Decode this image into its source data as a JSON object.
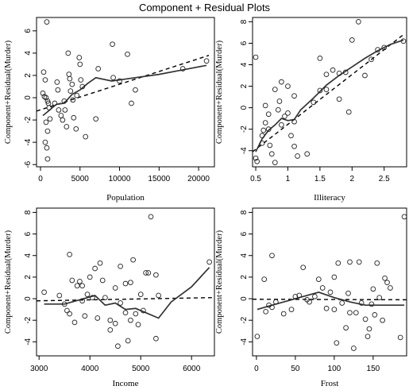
{
  "chart_data": [
    {
      "type": "scatter",
      "title": "Component + Residual Plots",
      "xlabel": "Population",
      "ylabel": "Component+Residual(Murder)",
      "xlim": [
        -500,
        22000
      ],
      "ylim": [
        -6.2,
        7.2
      ],
      "xticks": [
        0,
        5000,
        10000,
        15000,
        20000
      ],
      "yticks": [
        -6,
        -4,
        -2,
        0,
        2,
        4,
        6
      ],
      "points": [
        [
          800,
          6.8
        ],
        [
          400,
          2.3
        ],
        [
          600,
          1.6
        ],
        [
          300,
          0.4
        ],
        [
          500,
          0.1
        ],
        [
          700,
          0.0
        ],
        [
          900,
          -0.3
        ],
        [
          1100,
          -0.9
        ],
        [
          1200,
          -1.9
        ],
        [
          700,
          -2.2
        ],
        [
          900,
          -3.0
        ],
        [
          600,
          -4.0
        ],
        [
          800,
          -4.5
        ],
        [
          900,
          -5.5
        ],
        [
          1000,
          -0.5
        ],
        [
          1800,
          -0.5
        ],
        [
          2100,
          1.4
        ],
        [
          2200,
          0.7
        ],
        [
          2300,
          -1.1
        ],
        [
          2600,
          -1.6
        ],
        [
          2800,
          -2.0
        ],
        [
          3000,
          -0.3
        ],
        [
          3100,
          -1.1
        ],
        [
          3300,
          -2.6
        ],
        [
          3500,
          4.0
        ],
        [
          3600,
          2.1
        ],
        [
          3700,
          1.7
        ],
        [
          3800,
          0.6
        ],
        [
          4000,
          1.2
        ],
        [
          4100,
          -0.2
        ],
        [
          4200,
          -1.8
        ],
        [
          4500,
          -2.8
        ],
        [
          4600,
          0.2
        ],
        [
          4900,
          3.6
        ],
        [
          5000,
          3.0
        ],
        [
          5100,
          1.6
        ],
        [
          5300,
          1.0
        ],
        [
          5700,
          -3.5
        ],
        [
          7000,
          -1.9
        ],
        [
          7300,
          2.6
        ],
        [
          9100,
          4.8
        ],
        [
          9200,
          1.8
        ],
        [
          10000,
          1.5
        ],
        [
          11000,
          3.9
        ],
        [
          11500,
          -0.5
        ],
        [
          12000,
          0.7
        ],
        [
          18000,
          2.6
        ],
        [
          21000,
          3.3
        ]
      ],
      "fit_line": [
        [
          -500,
          -1.2
        ],
        [
          21300,
          3.8
        ]
      ],
      "smooth": [
        [
          300,
          -1.6
        ],
        [
          1000,
          -1.2
        ],
        [
          2000,
          -0.6
        ],
        [
          3000,
          -0.5
        ],
        [
          4000,
          0.3
        ],
        [
          5000,
          0.7
        ],
        [
          6000,
          1.3
        ],
        [
          7000,
          1.8
        ],
        [
          9000,
          1.5
        ],
        [
          11000,
          1.7
        ],
        [
          15000,
          2.1
        ],
        [
          18000,
          2.5
        ],
        [
          21000,
          2.9
        ]
      ]
    },
    {
      "type": "scatter",
      "xlabel": "Illiteracy",
      "ylabel": "Component+Residual(Murder)",
      "xlim": [
        0.45,
        2.85
      ],
      "ylim": [
        -5.5,
        8.4
      ],
      "xticks": [
        0.5,
        1.0,
        1.5,
        2.0,
        2.5
      ],
      "yticks": [
        -4,
        -2,
        0,
        2,
        4,
        6,
        8
      ],
      "points": [
        [
          0.5,
          4.7
        ],
        [
          0.5,
          -4.7
        ],
        [
          0.52,
          -5.0
        ],
        [
          0.6,
          -2.6
        ],
        [
          0.6,
          -3.3
        ],
        [
          0.62,
          -2.1
        ],
        [
          0.65,
          -1.4
        ],
        [
          0.65,
          0.2
        ],
        [
          0.7,
          -0.6
        ],
        [
          0.7,
          -2.0
        ],
        [
          0.72,
          -3.5
        ],
        [
          0.75,
          -4.3
        ],
        [
          0.8,
          -5.1
        ],
        [
          0.8,
          1.7
        ],
        [
          0.85,
          -0.2
        ],
        [
          0.87,
          0.6
        ],
        [
          0.9,
          2.4
        ],
        [
          0.9,
          -1.6
        ],
        [
          0.95,
          -0.8
        ],
        [
          1.0,
          -0.5
        ],
        [
          1.0,
          2.0
        ],
        [
          1.05,
          -2.6
        ],
        [
          1.1,
          -1.3
        ],
        [
          1.1,
          -3.6
        ],
        [
          1.1,
          1.1
        ],
        [
          1.15,
          -4.5
        ],
        [
          1.3,
          -4.3
        ],
        [
          1.4,
          0.5
        ],
        [
          1.5,
          1.6
        ],
        [
          1.5,
          4.6
        ],
        [
          1.6,
          1.7
        ],
        [
          1.6,
          3.1
        ],
        [
          1.7,
          3.5
        ],
        [
          1.8,
          3.2
        ],
        [
          1.8,
          0.8
        ],
        [
          1.9,
          3.3
        ],
        [
          1.95,
          -0.4
        ],
        [
          2.0,
          6.3
        ],
        [
          2.1,
          8.0
        ],
        [
          2.2,
          3.0
        ],
        [
          2.3,
          4.5
        ],
        [
          2.4,
          5.4
        ],
        [
          2.5,
          5.6
        ],
        [
          2.8,
          6.2
        ]
      ],
      "fit_line": [
        [
          0.45,
          -4.1
        ],
        [
          2.8,
          6.8
        ]
      ],
      "smooth": [
        [
          0.5,
          -4.1
        ],
        [
          0.6,
          -2.9
        ],
        [
          0.7,
          -2.1
        ],
        [
          0.8,
          -1.6
        ],
        [
          0.9,
          -1.0
        ],
        [
          1.0,
          -1.2
        ],
        [
          1.1,
          -1.1
        ],
        [
          1.2,
          -0.2
        ],
        [
          1.4,
          0.9
        ],
        [
          1.6,
          2.1
        ],
        [
          1.8,
          3.0
        ],
        [
          2.0,
          3.8
        ],
        [
          2.2,
          4.6
        ],
        [
          2.4,
          5.3
        ],
        [
          2.6,
          5.9
        ],
        [
          2.8,
          6.3
        ]
      ]
    },
    {
      "type": "scatter",
      "xlabel": "Income",
      "ylabel": "Component+Residual(Murder)",
      "xlim": [
        2950,
        6450
      ],
      "ylim": [
        -5.3,
        8.4
      ],
      "xticks": [
        3000,
        4000,
        5000,
        6000
      ],
      "yticks": [
        -4,
        -2,
        0,
        2,
        4,
        6,
        8
      ],
      "points": [
        [
          3100,
          0.6
        ],
        [
          3400,
          0.3
        ],
        [
          3500,
          -0.5
        ],
        [
          3550,
          -1.1
        ],
        [
          3600,
          -1.4
        ],
        [
          3600,
          4.1
        ],
        [
          3650,
          1.7
        ],
        [
          3700,
          -2.2
        ],
        [
          3750,
          1.2
        ],
        [
          3800,
          1.6
        ],
        [
          3850,
          1.2
        ],
        [
          3850,
          -0.2
        ],
        [
          3900,
          -1.6
        ],
        [
          3950,
          0.4
        ],
        [
          4000,
          2.0
        ],
        [
          4050,
          0.1
        ],
        [
          4100,
          2.8
        ],
        [
          4150,
          -1.8
        ],
        [
          4200,
          3.3
        ],
        [
          4250,
          1.7
        ],
        [
          4300,
          0.1
        ],
        [
          4400,
          -2.0
        ],
        [
          4400,
          -2.9
        ],
        [
          4500,
          1.0
        ],
        [
          4500,
          -2.3
        ],
        [
          4550,
          -4.4
        ],
        [
          4600,
          3.0
        ],
        [
          4600,
          -0.4
        ],
        [
          4700,
          1.4
        ],
        [
          4700,
          -1.3
        ],
        [
          4750,
          -3.9
        ],
        [
          4800,
          1.5
        ],
        [
          4800,
          -2.0
        ],
        [
          4850,
          3.6
        ],
        [
          4900,
          -1.4
        ],
        [
          4950,
          -2.4
        ],
        [
          5000,
          0.4
        ],
        [
          5050,
          -1.1
        ],
        [
          5100,
          2.4
        ],
        [
          5150,
          2.4
        ],
        [
          5200,
          7.6
        ],
        [
          5300,
          2.2
        ],
        [
          5300,
          -3.7
        ],
        [
          5350,
          0.3
        ],
        [
          6350,
          3.4
        ]
      ],
      "fit_line": [
        [
          2950,
          -0.2
        ],
        [
          6400,
          0.1
        ]
      ],
      "smooth": [
        [
          3100,
          -0.5
        ],
        [
          3500,
          -0.5
        ],
        [
          3800,
          -0.1
        ],
        [
          4100,
          0.3
        ],
        [
          4300,
          -0.6
        ],
        [
          4500,
          -0.4
        ],
        [
          4700,
          -1.0
        ],
        [
          4900,
          -0.9
        ],
        [
          5100,
          -1.3
        ],
        [
          5350,
          -1.8
        ],
        [
          5600,
          -0.3
        ],
        [
          6000,
          1.1
        ],
        [
          6350,
          2.9
        ]
      ]
    },
    {
      "type": "scatter",
      "xlabel": "Frost",
      "ylabel": "Component+Residual(Murder)",
      "xlim": [
        -5,
        193
      ],
      "ylim": [
        -5.3,
        8.4
      ],
      "xticks": [
        0,
        50,
        100,
        150
      ],
      "yticks": [
        -4,
        -2,
        0,
        2,
        4,
        6,
        8
      ],
      "points": [
        [
          1,
          -3.5
        ],
        [
          10,
          1.8
        ],
        [
          12,
          -1.2
        ],
        [
          16,
          -0.6
        ],
        [
          20,
          4.0
        ],
        [
          20,
          -0.8
        ],
        [
          25,
          -0.3
        ],
        [
          35,
          -1.4
        ],
        [
          45,
          -1.0
        ],
        [
          50,
          0.2
        ],
        [
          55,
          0.3
        ],
        [
          60,
          2.9
        ],
        [
          65,
          -0.1
        ],
        [
          68,
          -0.3
        ],
        [
          75,
          0.2
        ],
        [
          80,
          1.8
        ],
        [
          85,
          1.0
        ],
        [
          90,
          -0.9
        ],
        [
          95,
          0.6
        ],
        [
          100,
          -1.0
        ],
        [
          100,
          2.0
        ],
        [
          103,
          -4.1
        ],
        [
          105,
          3.3
        ],
        [
          110,
          -0.4
        ],
        [
          115,
          -2.7
        ],
        [
          118,
          0.5
        ],
        [
          120,
          3.4
        ],
        [
          120,
          -1.3
        ],
        [
          125,
          -4.6
        ],
        [
          128,
          -1.3
        ],
        [
          132,
          3.4
        ],
        [
          135,
          -0.4
        ],
        [
          140,
          -1.9
        ],
        [
          143,
          -3.5
        ],
        [
          145,
          -2.8
        ],
        [
          148,
          -0.5
        ],
        [
          150,
          0.9
        ],
        [
          152,
          -1.5
        ],
        [
          155,
          3.3
        ],
        [
          158,
          0.1
        ],
        [
          162,
          -2.0
        ],
        [
          165,
          1.9
        ],
        [
          168,
          1.5
        ],
        [
          172,
          1.0
        ],
        [
          185,
          -3.6
        ],
        [
          190,
          7.6
        ]
      ],
      "fit_line": [
        [
          -5,
          -0.05
        ],
        [
          193,
          -0.1
        ]
      ],
      "smooth": [
        [
          1,
          -1.0
        ],
        [
          20,
          -0.6
        ],
        [
          40,
          -0.2
        ],
        [
          60,
          0.2
        ],
        [
          80,
          0.6
        ],
        [
          100,
          0.1
        ],
        [
          120,
          -0.3
        ],
        [
          140,
          -0.6
        ],
        [
          160,
          -0.6
        ],
        [
          190,
          -0.6
        ]
      ]
    }
  ]
}
